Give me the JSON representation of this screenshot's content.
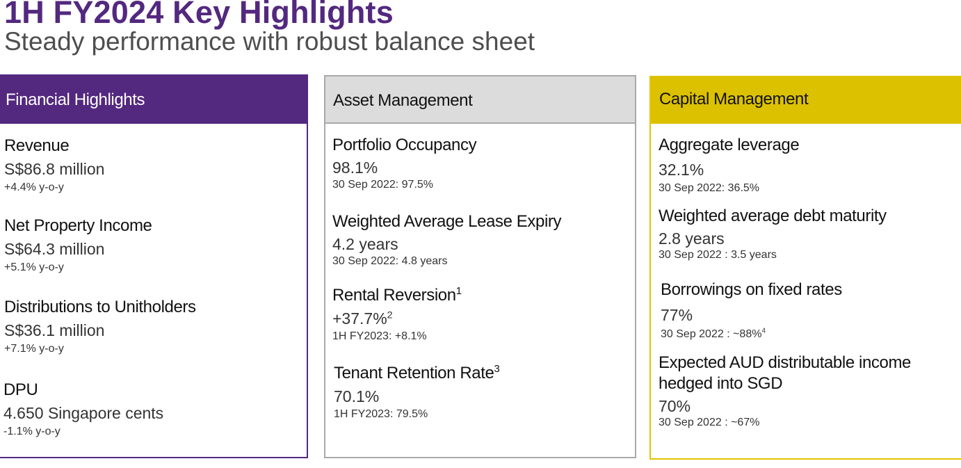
{
  "page": {
    "title": "1H FY2024 Key Highlights",
    "subtitle": "Steady performance with robust balance sheet"
  },
  "colors": {
    "title": "#53287f",
    "financial_header": "#53287f",
    "asset_header": "#dcdcdc",
    "capital_header": "#dcc100"
  },
  "financial": {
    "header": "Financial Highlights",
    "items": [
      {
        "label": "Revenue",
        "value": "S$86.8 million",
        "sub": "+4.4% y-o-y"
      },
      {
        "label": "Net Property Income",
        "value": "S$64.3 million",
        "sub": "+5.1% y-o-y"
      },
      {
        "label": "Distributions to Unitholders",
        "value": "S$36.1 million",
        "sub": "+7.1% y-o-y"
      },
      {
        "label": "DPU",
        "value": "4.650 Singapore cents",
        "sub": "-1.1% y-o-y"
      }
    ]
  },
  "asset": {
    "header": "Asset Management",
    "items": [
      {
        "label": "Portfolio Occupancy",
        "value": "98.1%",
        "sub": "30 Sep 2022: 97.5%"
      },
      {
        "label": "Weighted Average Lease Expiry",
        "value": "4.2 years",
        "sub": "30 Sep 2022: 4.8 years"
      },
      {
        "label": "Rental Reversion",
        "label_note": "1",
        "value": "+37.7%",
        "value_note": "2",
        "sub": "1H FY2023: +8.1%"
      },
      {
        "label": "Tenant Retention Rate",
        "label_note": "3",
        "value": "70.1%",
        "sub": "1H FY2023: 79.5%"
      }
    ]
  },
  "capital": {
    "header": "Capital Management",
    "items": [
      {
        "label": "Aggregate leverage",
        "value": "32.1%",
        "sub": "30 Sep 2022: 36.5%"
      },
      {
        "label": "Weighted average debt maturity",
        "value": "2.8 years",
        "sub": "30 Sep 2022 : 3.5 years"
      },
      {
        "label": "Borrowings on fixed rates",
        "value": "77%",
        "sub": "30 Sep 2022 : ~88%",
        "sub_note": "4"
      },
      {
        "label_line1": "Expected AUD distributable income",
        "label_line2": "hedged into SGD",
        "value": "70%",
        "sub": "30 Sep 2022 : ~67%"
      }
    ]
  }
}
